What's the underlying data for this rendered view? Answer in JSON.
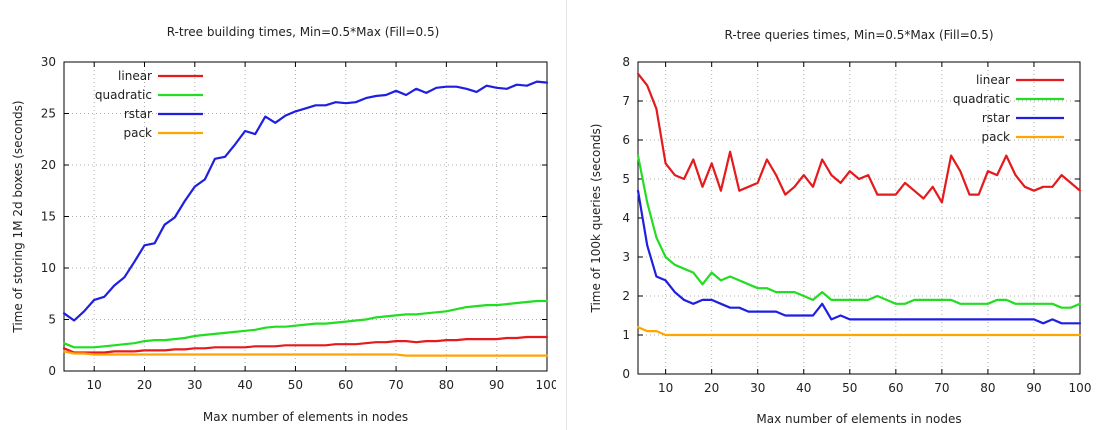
{
  "chart_data": [
    {
      "type": "line",
      "title": "R-tree building times, Min=0.5*Max (Fill=0.5)",
      "xlabel": "Max number of elements in nodes",
      "ylabel": "Time of storing 1M 2d boxes (seconds)",
      "xlim": [
        4,
        100
      ],
      "ylim": [
        0,
        30
      ],
      "xticks": [
        10,
        20,
        30,
        40,
        50,
        60,
        70,
        80,
        90,
        100
      ],
      "yticks": [
        0,
        5,
        10,
        15,
        20,
        25,
        30
      ],
      "grid": true,
      "legend_position": "top-left",
      "x": [
        4,
        6,
        8,
        10,
        12,
        14,
        16,
        18,
        20,
        22,
        24,
        26,
        28,
        30,
        32,
        34,
        36,
        38,
        40,
        42,
        44,
        46,
        48,
        50,
        52,
        54,
        56,
        58,
        60,
        62,
        64,
        66,
        68,
        70,
        72,
        74,
        76,
        78,
        80,
        82,
        84,
        86,
        88,
        90,
        92,
        94,
        96,
        98,
        100
      ],
      "series": [
        {
          "name": "linear",
          "color": "#e41a1c",
          "values": [
            2.2,
            1.8,
            1.8,
            1.8,
            1.8,
            1.9,
            1.9,
            1.9,
            2.0,
            2.0,
            2.0,
            2.1,
            2.1,
            2.2,
            2.2,
            2.3,
            2.3,
            2.3,
            2.3,
            2.4,
            2.4,
            2.4,
            2.5,
            2.5,
            2.5,
            2.5,
            2.5,
            2.6,
            2.6,
            2.6,
            2.7,
            2.8,
            2.8,
            2.9,
            2.9,
            2.8,
            2.9,
            2.9,
            3.0,
            3.0,
            3.1,
            3.1,
            3.1,
            3.1,
            3.2,
            3.2,
            3.3,
            3.3,
            3.3
          ]
        },
        {
          "name": "quadratic",
          "color": "#22dd22",
          "values": [
            2.7,
            2.3,
            2.3,
            2.3,
            2.4,
            2.5,
            2.6,
            2.7,
            2.9,
            3.0,
            3.0,
            3.1,
            3.2,
            3.4,
            3.5,
            3.6,
            3.7,
            3.8,
            3.9,
            4.0,
            4.2,
            4.3,
            4.3,
            4.4,
            4.5,
            4.6,
            4.6,
            4.7,
            4.8,
            4.9,
            5.0,
            5.2,
            5.3,
            5.4,
            5.5,
            5.5,
            5.6,
            5.7,
            5.8,
            6.0,
            6.2,
            6.3,
            6.4,
            6.4,
            6.5,
            6.6,
            6.7,
            6.8,
            6.8
          ]
        },
        {
          "name": "rstar",
          "color": "#1f1fe0",
          "values": [
            5.6,
            4.9,
            5.8,
            6.9,
            7.2,
            8.3,
            9.1,
            10.6,
            12.2,
            12.4,
            14.2,
            14.9,
            16.5,
            17.9,
            18.6,
            20.6,
            20.8,
            22.0,
            23.3,
            23.0,
            24.7,
            24.1,
            24.8,
            25.2,
            25.5,
            25.8,
            25.8,
            26.1,
            26.0,
            26.1,
            26.5,
            26.7,
            26.8,
            27.2,
            26.8,
            27.4,
            27.0,
            27.5,
            27.6,
            27.6,
            27.4,
            27.1,
            27.7,
            27.5,
            27.4,
            27.8,
            27.7,
            28.1,
            28.0
          ]
        },
        {
          "name": "pack",
          "color": "#ffa500",
          "values": [
            1.9,
            1.7,
            1.7,
            1.6,
            1.6,
            1.6,
            1.6,
            1.6,
            1.6,
            1.6,
            1.6,
            1.6,
            1.6,
            1.6,
            1.6,
            1.6,
            1.6,
            1.6,
            1.6,
            1.6,
            1.6,
            1.6,
            1.6,
            1.6,
            1.6,
            1.6,
            1.6,
            1.6,
            1.6,
            1.6,
            1.6,
            1.6,
            1.6,
            1.6,
            1.5,
            1.5,
            1.5,
            1.5,
            1.5,
            1.5,
            1.5,
            1.5,
            1.5,
            1.5,
            1.5,
            1.5,
            1.5,
            1.5,
            1.5
          ]
        }
      ]
    },
    {
      "type": "line",
      "title": "R-tree queries times, Min=0.5*Max (Fill=0.5)",
      "xlabel": "Max number of elements in nodes",
      "ylabel": "Time of 100k queries (seconds)",
      "xlim": [
        4,
        100
      ],
      "ylim": [
        0,
        8
      ],
      "xticks": [
        10,
        20,
        30,
        40,
        50,
        60,
        70,
        80,
        90,
        100
      ],
      "yticks": [
        0,
        1,
        2,
        3,
        4,
        5,
        6,
        7,
        8
      ],
      "grid": true,
      "legend_position": "top-right",
      "x": [
        4,
        6,
        8,
        10,
        12,
        14,
        16,
        18,
        20,
        22,
        24,
        26,
        28,
        30,
        32,
        34,
        36,
        38,
        40,
        42,
        44,
        46,
        48,
        50,
        52,
        54,
        56,
        58,
        60,
        62,
        64,
        66,
        68,
        70,
        72,
        74,
        76,
        78,
        80,
        82,
        84,
        86,
        88,
        90,
        92,
        94,
        96,
        98,
        100
      ],
      "series": [
        {
          "name": "linear",
          "color": "#e41a1c",
          "values": [
            7.7,
            7.4,
            6.8,
            5.4,
            5.1,
            5.0,
            5.5,
            4.8,
            5.4,
            4.7,
            5.7,
            4.7,
            4.8,
            4.9,
            5.5,
            5.1,
            4.6,
            4.8,
            5.1,
            4.8,
            5.5,
            5.1,
            4.9,
            5.2,
            5.0,
            5.1,
            4.6,
            4.6,
            4.6,
            4.9,
            4.7,
            4.5,
            4.8,
            4.4,
            5.6,
            5.2,
            4.6,
            4.6,
            5.2,
            5.1,
            5.6,
            5.1,
            4.8,
            4.7,
            4.8,
            4.8,
            5.1,
            4.9,
            4.7
          ]
        },
        {
          "name": "quadratic",
          "color": "#22dd22",
          "values": [
            5.6,
            4.4,
            3.5,
            3.0,
            2.8,
            2.7,
            2.6,
            2.3,
            2.6,
            2.4,
            2.5,
            2.4,
            2.3,
            2.2,
            2.2,
            2.1,
            2.1,
            2.1,
            2.0,
            1.9,
            2.1,
            1.9,
            1.9,
            1.9,
            1.9,
            1.9,
            2.0,
            1.9,
            1.8,
            1.8,
            1.9,
            1.9,
            1.9,
            1.9,
            1.9,
            1.8,
            1.8,
            1.8,
            1.8,
            1.9,
            1.9,
            1.8,
            1.8,
            1.8,
            1.8,
            1.8,
            1.7,
            1.7,
            1.8
          ]
        },
        {
          "name": "rstar",
          "color": "#1f1fe0",
          "values": [
            4.7,
            3.3,
            2.5,
            2.4,
            2.1,
            1.9,
            1.8,
            1.9,
            1.9,
            1.8,
            1.7,
            1.7,
            1.6,
            1.6,
            1.6,
            1.6,
            1.5,
            1.5,
            1.5,
            1.5,
            1.8,
            1.4,
            1.5,
            1.4,
            1.4,
            1.4,
            1.4,
            1.4,
            1.4,
            1.4,
            1.4,
            1.4,
            1.4,
            1.4,
            1.4,
            1.4,
            1.4,
            1.4,
            1.4,
            1.4,
            1.4,
            1.4,
            1.4,
            1.4,
            1.3,
            1.4,
            1.3,
            1.3,
            1.3
          ]
        },
        {
          "name": "pack",
          "color": "#ffa500",
          "values": [
            1.2,
            1.1,
            1.1,
            1.0,
            1.0,
            1.0,
            1.0,
            1.0,
            1.0,
            1.0,
            1.0,
            1.0,
            1.0,
            1.0,
            1.0,
            1.0,
            1.0,
            1.0,
            1.0,
            1.0,
            1.0,
            1.0,
            1.0,
            1.0,
            1.0,
            1.0,
            1.0,
            1.0,
            1.0,
            1.0,
            1.0,
            1.0,
            1.0,
            1.0,
            1.0,
            1.0,
            1.0,
            1.0,
            1.0,
            1.0,
            1.0,
            1.0,
            1.0,
            1.0,
            1.0,
            1.0,
            1.0,
            1.0,
            1.0
          ]
        }
      ]
    }
  ]
}
